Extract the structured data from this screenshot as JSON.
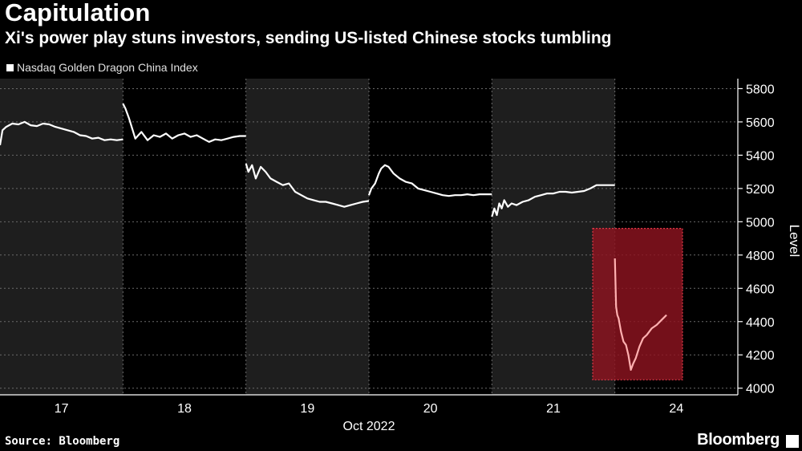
{
  "header": {
    "headline": "Capitulation",
    "subtitle": "Xi's power play stuns investors, sending US-listed Chinese stocks tumbling"
  },
  "legend": {
    "label": "Nasdaq Golden Dragon China Index"
  },
  "footer": {
    "source": "Source: Bloomberg",
    "brand": "Bloomberg"
  },
  "chart_data": {
    "type": "line",
    "title": "Capitulation",
    "subtitle": "Xi's power play stuns investors, sending US-listed Chinese stocks tumbling",
    "ylabel": "Level",
    "xlabel": "Oct 2022",
    "ylim": [
      3960,
      5860
    ],
    "yticks": [
      4000,
      4200,
      4400,
      4600,
      4800,
      5000,
      5200,
      5400,
      5600,
      5800
    ],
    "xlim": [
      0,
      6
    ],
    "day_labels": [
      "17",
      "18",
      "19",
      "20",
      "21",
      "24"
    ],
    "shaded_sessions": [
      0,
      2,
      4
    ],
    "grid": true,
    "colors": {
      "line": "#ffffff",
      "highlight_line": "#ffb0b0",
      "highlight_box": "#8e1420",
      "shade": "#1e1e1e"
    },
    "highlight": {
      "x": [
        4.82,
        5.55
      ],
      "y": [
        4050,
        4960
      ]
    },
    "series": [
      {
        "name": "Nasdaq Golden Dragon China Index",
        "sessions": [
          {
            "x": [
              0.0,
              0.02,
              0.05,
              0.1,
              0.15,
              0.2,
              0.25,
              0.3,
              0.35,
              0.4,
              0.45,
              0.5,
              0.55,
              0.6,
              0.65,
              0.7,
              0.75,
              0.8,
              0.85,
              0.9,
              0.95,
              1.0
            ],
            "y": [
              5460,
              5550,
              5570,
              5590,
              5585,
              5600,
              5580,
              5575,
              5590,
              5585,
              5570,
              5560,
              5550,
              5540,
              5520,
              5515,
              5500,
              5505,
              5490,
              5495,
              5490,
              5495
            ]
          },
          {
            "x": [
              1.0,
              1.02,
              1.05,
              1.1,
              1.15,
              1.2,
              1.25,
              1.3,
              1.35,
              1.4,
              1.45,
              1.5,
              1.55,
              1.6,
              1.65,
              1.7,
              1.75,
              1.8,
              1.85,
              1.9,
              1.95,
              2.0
            ],
            "y": [
              5710,
              5680,
              5620,
              5500,
              5540,
              5490,
              5520,
              5510,
              5530,
              5500,
              5520,
              5530,
              5510,
              5520,
              5500,
              5480,
              5495,
              5490,
              5500,
              5510,
              5515,
              5515
            ]
          },
          {
            "x": [
              2.0,
              2.02,
              2.05,
              2.08,
              2.12,
              2.16,
              2.2,
              2.25,
              2.3,
              2.35,
              2.4,
              2.45,
              2.5,
              2.55,
              2.6,
              2.65,
              2.7,
              2.75,
              2.8,
              2.85,
              2.9,
              2.95,
              3.0
            ],
            "y": [
              5350,
              5300,
              5340,
              5260,
              5330,
              5300,
              5260,
              5240,
              5220,
              5230,
              5180,
              5160,
              5140,
              5130,
              5120,
              5120,
              5110,
              5100,
              5090,
              5100,
              5110,
              5120,
              5125
            ]
          },
          {
            "x": [
              3.0,
              3.02,
              3.05,
              3.08,
              3.1,
              3.13,
              3.16,
              3.2,
              3.25,
              3.3,
              3.35,
              3.4,
              3.45,
              3.5,
              3.55,
              3.6,
              3.65,
              3.7,
              3.75,
              3.8,
              3.85,
              3.9,
              4.0
            ],
            "y": [
              5160,
              5200,
              5230,
              5290,
              5320,
              5340,
              5330,
              5290,
              5260,
              5240,
              5230,
              5200,
              5190,
              5180,
              5170,
              5160,
              5155,
              5160,
              5160,
              5165,
              5160,
              5165,
              5165
            ]
          },
          {
            "x": [
              4.0,
              4.02,
              4.04,
              4.06,
              4.08,
              4.1,
              4.13,
              4.16,
              4.2,
              4.25,
              4.3,
              4.35,
              4.4,
              4.45,
              4.5,
              4.55,
              4.6,
              4.65,
              4.7,
              4.75,
              4.8,
              4.85,
              4.9,
              5.0
            ],
            "y": [
              5030,
              5080,
              5040,
              5110,
              5080,
              5130,
              5090,
              5110,
              5100,
              5120,
              5130,
              5150,
              5160,
              5170,
              5170,
              5180,
              5180,
              5175,
              5180,
              5185,
              5200,
              5220,
              5220,
              5220
            ]
          },
          {
            "x": [
              5.0,
              5.01,
              5.02,
              5.03,
              5.05,
              5.07,
              5.09,
              5.11,
              5.13,
              5.15,
              5.17,
              5.2,
              5.23,
              5.26,
              5.3,
              5.34,
              5.38,
              5.42
            ],
            "y": [
              4780,
              4490,
              4440,
              4420,
              4340,
              4280,
              4260,
              4200,
              4110,
              4150,
              4180,
              4250,
              4300,
              4320,
              4360,
              4380,
              4410,
              4440
            ]
          }
        ]
      }
    ]
  }
}
